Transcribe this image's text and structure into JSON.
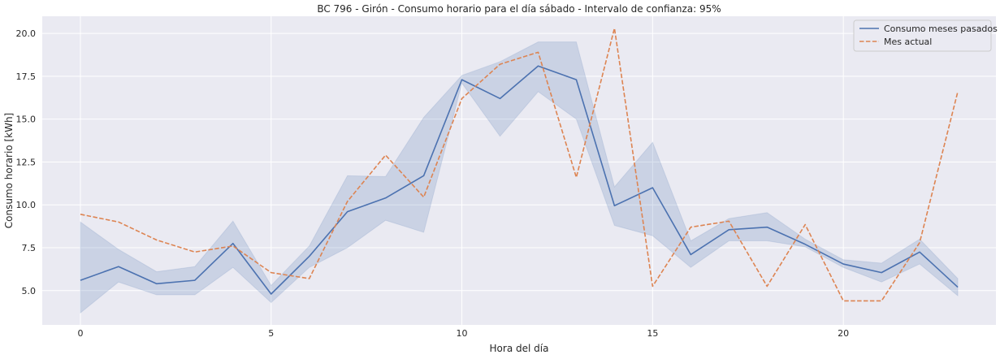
{
  "chart_data": {
    "type": "line",
    "title": "BC 796 - Girón - Consumo horario para el día sábado - Intervalo de confianza: 95%",
    "xlabel": "Hora del día",
    "ylabel": "Consumo horario [kWh]",
    "xlim": [
      -1,
      24
    ],
    "ylim": [
      3.0,
      21.0
    ],
    "xticks": [
      0,
      5,
      10,
      15,
      20
    ],
    "xtick_labels": [
      "0",
      "5",
      "10",
      "15",
      "20"
    ],
    "yticks": [
      5.0,
      7.5,
      10.0,
      12.5,
      15.0,
      17.5,
      20.0
    ],
    "ytick_labels": [
      "5.0",
      "7.5",
      "10.0",
      "12.5",
      "15.0",
      "17.5",
      "20.0"
    ],
    "grid": true,
    "legend_position": "top-right",
    "x": [
      0,
      1,
      2,
      3,
      4,
      5,
      6,
      7,
      8,
      9,
      10,
      11,
      12,
      13,
      14,
      15,
      16,
      17,
      18,
      19,
      20,
      21,
      22,
      23
    ],
    "series": [
      {
        "name": "Consumo meses pasados",
        "color": "#4c72b0",
        "style": "solid",
        "values": [
          5.6,
          6.4,
          5.4,
          5.6,
          7.75,
          4.8,
          7.0,
          9.6,
          10.4,
          11.7,
          17.3,
          16.2,
          18.1,
          17.3,
          9.95,
          11.0,
          7.1,
          8.55,
          8.7,
          7.7,
          6.55,
          6.05,
          7.25,
          5.2
        ],
        "ci_lower": [
          3.7,
          5.5,
          4.75,
          4.75,
          6.35,
          4.3,
          6.35,
          7.5,
          9.1,
          8.4,
          17.1,
          14.0,
          16.6,
          15.0,
          8.8,
          8.2,
          6.35,
          7.9,
          7.9,
          7.55,
          6.35,
          5.5,
          6.55,
          4.7
        ],
        "ci_upper": [
          9.0,
          7.4,
          6.1,
          6.4,
          9.05,
          5.3,
          7.6,
          11.7,
          11.65,
          15.1,
          17.55,
          18.35,
          19.5,
          19.5,
          11.05,
          13.65,
          7.9,
          9.2,
          9.55,
          8.0,
          6.8,
          6.6,
          8.0,
          5.7
        ]
      },
      {
        "name": "Mes actual",
        "color": "#dd8452",
        "style": "dashed",
        "values": [
          9.45,
          9.0,
          7.95,
          7.25,
          7.6,
          6.05,
          5.7,
          10.2,
          12.9,
          10.45,
          16.2,
          18.2,
          18.9,
          11.6,
          20.3,
          5.25,
          8.7,
          9.05,
          5.25,
          8.85,
          4.4,
          4.4,
          7.8,
          16.6
        ]
      }
    ]
  }
}
